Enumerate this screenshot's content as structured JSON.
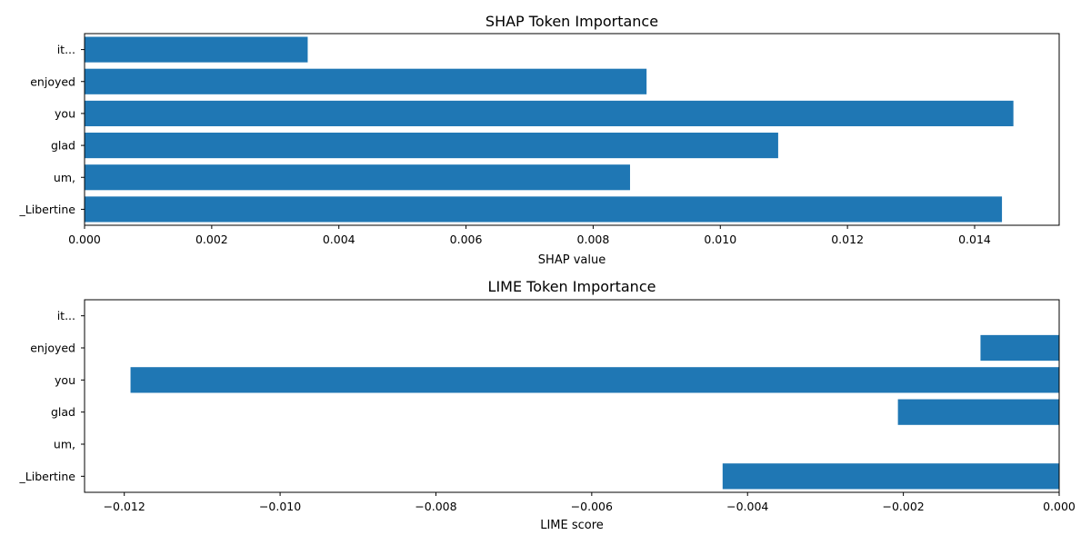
{
  "chart_data": [
    {
      "type": "bar",
      "orientation": "horizontal",
      "title": "SHAP Token Importance",
      "xlabel": "SHAP value",
      "ylabel": "",
      "categories": [
        "it...",
        "enjoyed",
        "you",
        "glad",
        "um,",
        "_Libertine"
      ],
      "values": [
        0.00351,
        0.00884,
        0.01461,
        0.01091,
        0.00858,
        0.01443
      ],
      "xlim": [
        0.0,
        0.01533
      ],
      "xticks": [
        "0.000",
        "0.002",
        "0.004",
        "0.006",
        "0.008",
        "0.010",
        "0.012",
        "0.014"
      ],
      "xtick_values": [
        0.0,
        0.002,
        0.004,
        0.006,
        0.008,
        0.01,
        0.012,
        0.014
      ],
      "bar_color": "#1f77b4",
      "grid": false
    },
    {
      "type": "bar",
      "orientation": "horizontal",
      "title": "LIME Token Importance",
      "xlabel": "LIME score",
      "ylabel": "",
      "categories": [
        "it...",
        "enjoyed",
        "you",
        "glad",
        "um,",
        "_Libertine"
      ],
      "values": [
        0.0,
        -0.00101,
        -0.01192,
        -0.00207,
        0.0,
        -0.00432
      ],
      "xlim": [
        -0.01251,
        0.0
      ],
      "xticks": [
        "−0.012",
        "−0.010",
        "−0.008",
        "−0.006",
        "−0.004",
        "−0.002",
        "0.000"
      ],
      "xtick_values": [
        -0.012,
        -0.01,
        -0.008,
        -0.006,
        -0.004,
        -0.002,
        0.0
      ],
      "bar_color": "#1f77b4",
      "grid": false
    }
  ]
}
